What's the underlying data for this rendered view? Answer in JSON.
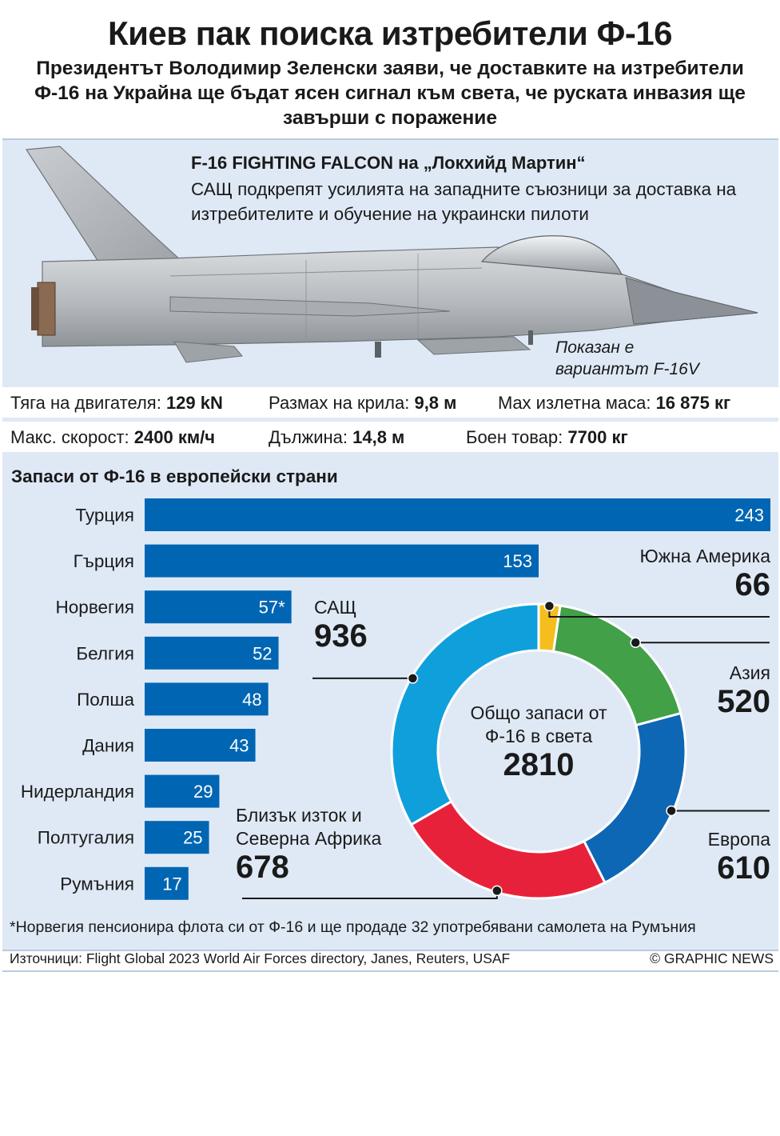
{
  "title": "Киев пак поиска изтребители Ф-16",
  "subtitle": "Президентът Володимир Зеленски заяви, че доставките на изтребители Ф-16 на Украйна ще бъдат ясен сигнал към света, че руската инвазия ще завърши с поражение",
  "jet": {
    "heading": "F-16 FIGHTING FALCON на „Локхийд Мартин“",
    "description": "САЩ подкрепят усилията на западните съюзници за доставка на изтребителите и обучение на украински пилоти",
    "variant_line1": "Показан е",
    "variant_line2": "вариантът F-16V"
  },
  "specs": [
    {
      "label": "Тяга на двигателя:",
      "value": "129 kN"
    },
    {
      "label": "Размах на крила:",
      "value": "9,8 м"
    },
    {
      "label": "Max излетна маса:",
      "value": "16 875 кг"
    },
    {
      "label": "Макс. скорост:",
      "value": "2400 км/ч"
    },
    {
      "label": "Дължина:",
      "value": "14,8 м"
    },
    {
      "label": "Боен товар:",
      "value": "7700 кг"
    }
  ],
  "chart_data": [
    {
      "type": "bar",
      "title": "Запаси от Ф-16 в европейски страни",
      "orientation": "horizontal",
      "categories": [
        "Турция",
        "Гърция",
        "Норвегия",
        "Белгия",
        "Полша",
        "Дания",
        "Нидерландия",
        "Полтугалия",
        "Румъния"
      ],
      "values": [
        243,
        153,
        57,
        52,
        48,
        43,
        29,
        25,
        17
      ],
      "value_labels": [
        "243",
        "153",
        "57*",
        "52",
        "48",
        "43",
        "29",
        "25",
        "17"
      ],
      "color": "#0066b3",
      "xlim": [
        0,
        243
      ]
    },
    {
      "type": "pie",
      "style": "donut",
      "center_label_lines": [
        "Общо запаси от",
        "Ф-16 в света"
      ],
      "center_value": "2810",
      "total": 2810,
      "slices": [
        {
          "label": "Южна Америка",
          "value": 66,
          "color": "#f5be1c"
        },
        {
          "label": "Азия",
          "value": 520,
          "color": "#41a048"
        },
        {
          "label": "Европа",
          "value": 610,
          "color": "#0d67b5"
        },
        {
          "label_lines": [
            "Близък изток и",
            "Северна Африка"
          ],
          "value": 678,
          "color": "#e8213a"
        },
        {
          "label": "САЩ",
          "value": 936,
          "color": "#0fa0dc"
        }
      ]
    }
  ],
  "footnote": "*Норвегия пенсионира флота си от Ф-16 и ще продаде 32 употребявани самолета на Румъния",
  "sources": "Източници: Flight Global 2023 World Air Forces directory, Janes, Reuters, USAF",
  "copyright": "© GRAPHIC NEWS"
}
